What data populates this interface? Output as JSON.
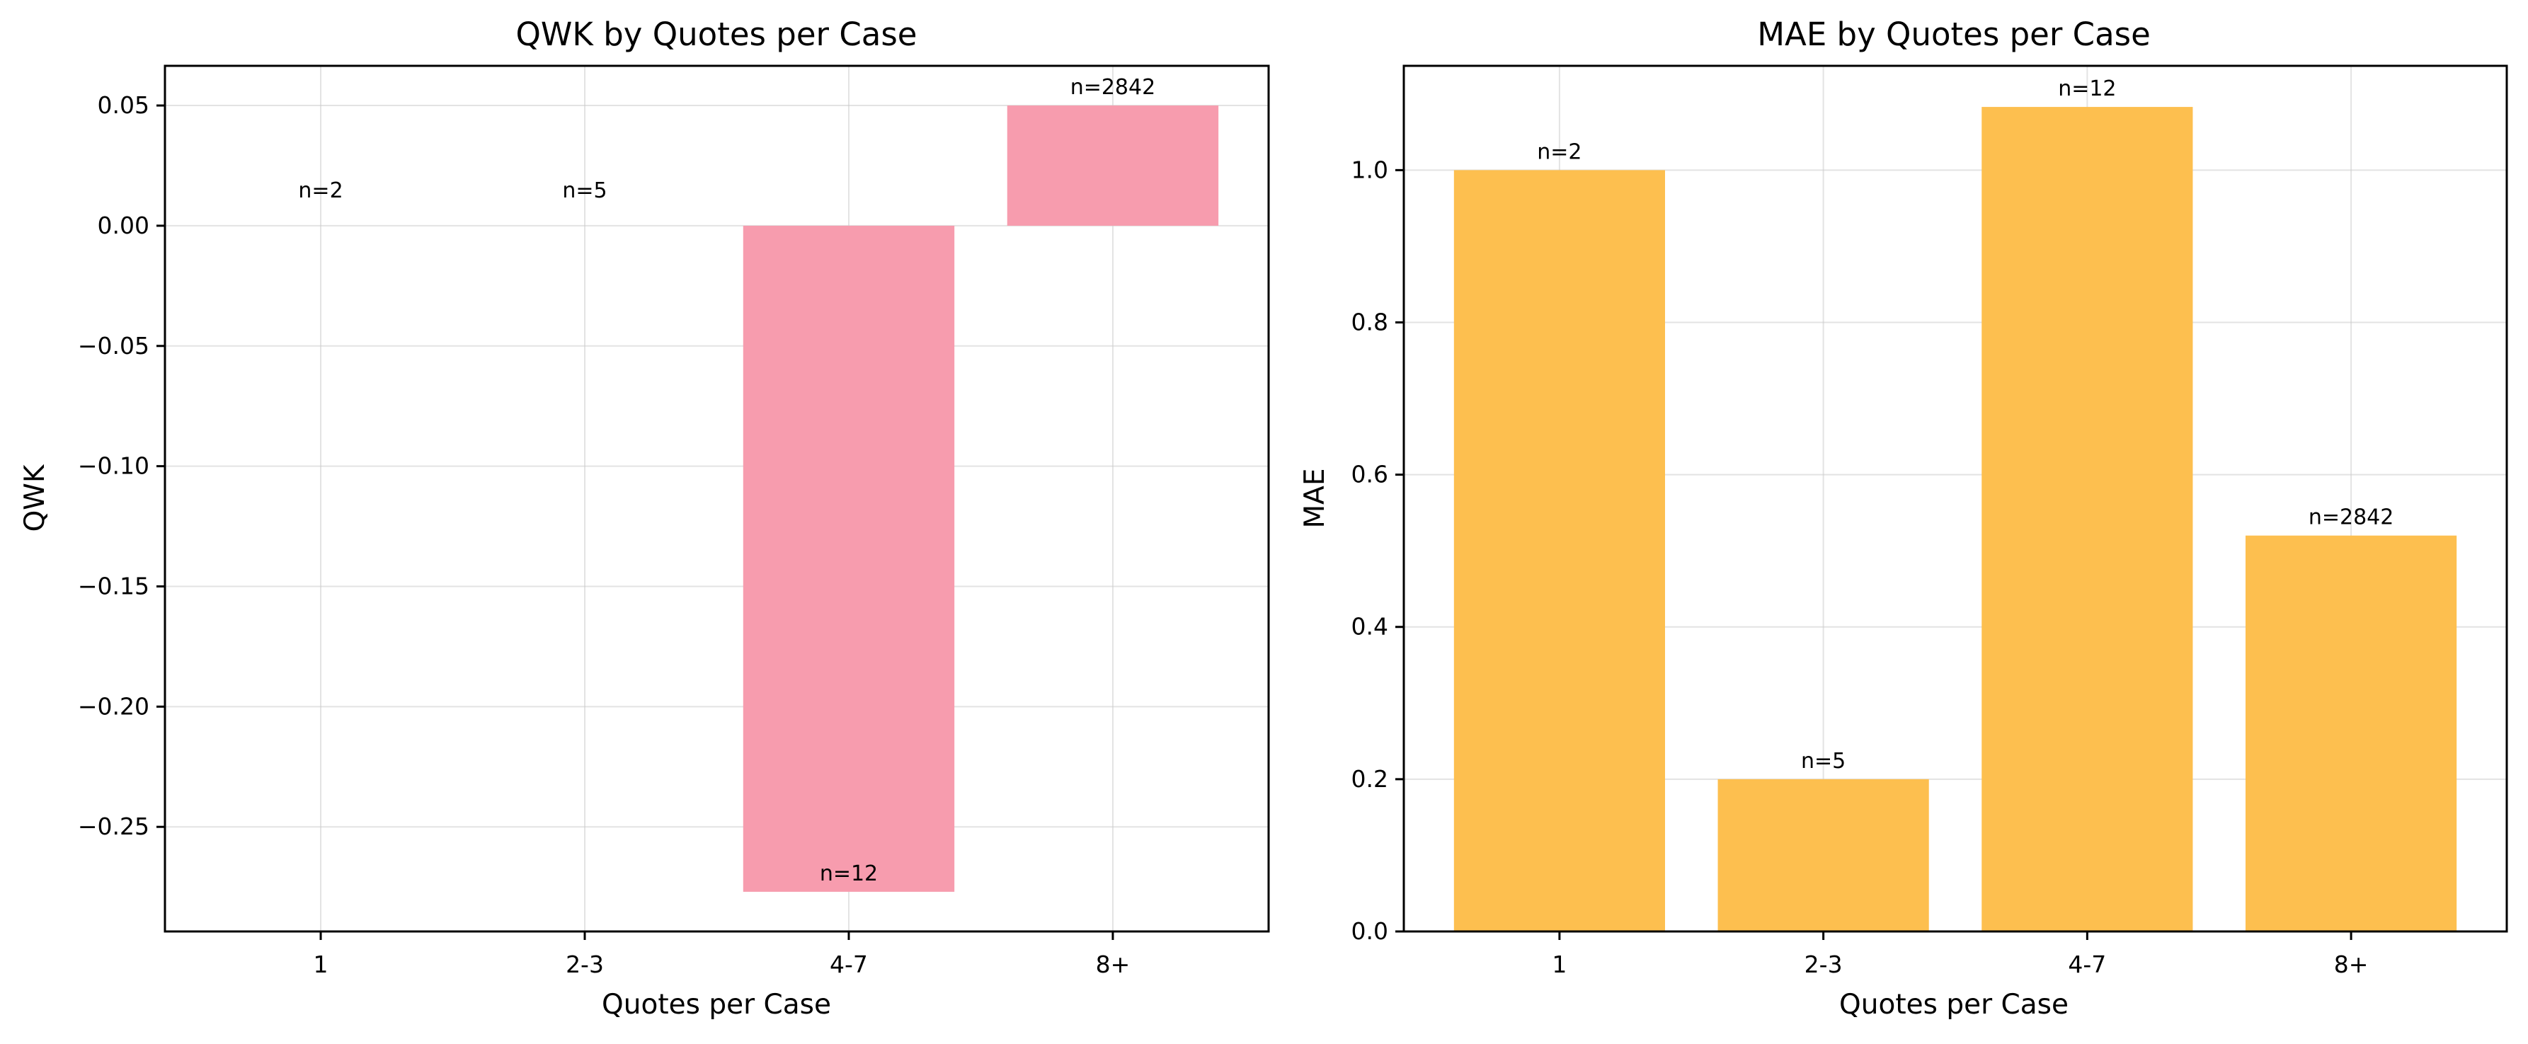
{
  "chart_data": [
    {
      "type": "bar",
      "title": "QWK by Quotes per Case",
      "xlabel": "Quotes per Case",
      "ylabel": "QWK",
      "categories": [
        "1",
        "2-3",
        "4-7",
        "8+"
      ],
      "values": [
        0.0,
        0.0,
        -0.277,
        0.05
      ],
      "data_labels": [
        "n=2",
        "n=5",
        "n=12",
        "n=2842"
      ],
      "yticks": [
        -0.25,
        -0.2,
        -0.15,
        -0.1,
        -0.05,
        0.0,
        0.05
      ],
      "ytick_labels": [
        "−0.25",
        "−0.20",
        "−0.15",
        "−0.10",
        "−0.05",
        "0.00",
        "0.05"
      ],
      "ylim": [
        -0.2935,
        0.0665
      ],
      "grid": true,
      "color": "#f79cae"
    },
    {
      "type": "bar",
      "title": "MAE by Quotes per Case",
      "xlabel": "Quotes per Case",
      "ylabel": "MAE",
      "categories": [
        "1",
        "2-3",
        "4-7",
        "8+"
      ],
      "values": [
        1.0,
        0.2,
        1.083,
        0.52
      ],
      "data_labels": [
        "n=2",
        "n=5",
        "n=12",
        "n=2842"
      ],
      "yticks": [
        0.0,
        0.2,
        0.4,
        0.6,
        0.8,
        1.0
      ],
      "ytick_labels": [
        "0.0",
        "0.2",
        "0.4",
        "0.6",
        "0.8",
        "1.0"
      ],
      "ylim": [
        0,
        1.137
      ],
      "grid": true,
      "color": "#fdbf4f"
    }
  ]
}
